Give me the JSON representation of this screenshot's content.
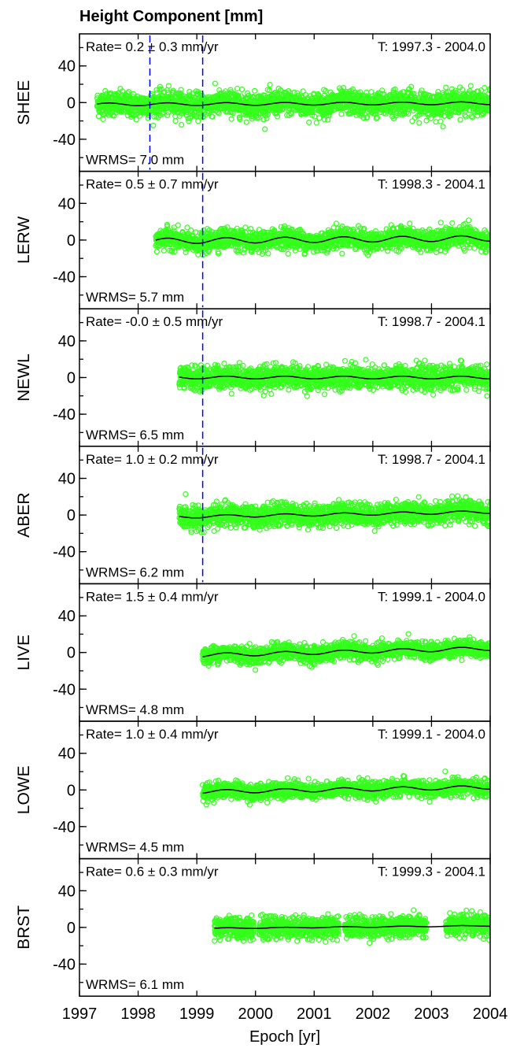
{
  "chart_data": {
    "type": "scatter",
    "title": "Height Component [mm]",
    "xlabel": "Epoch [yr]",
    "xlim": [
      1997,
      2004
    ],
    "ylim": [
      -75,
      75
    ],
    "x_ticks": [
      "1997",
      "1998",
      "1999",
      "2000",
      "2001",
      "2002",
      "2003",
      "2004"
    ],
    "y_ticks": [
      "40",
      "0",
      "-40"
    ],
    "colors": {
      "points": "#33ff1a",
      "model": "#000000",
      "breaks": "#0000ff"
    },
    "panels": [
      {
        "station": "SHEE",
        "rate_label": "Rate=  0.2 ±  0.3 mm/yr",
        "rate": 0.2,
        "rate_sigma": 0.3,
        "span_label": "T: 1997.3 - 2004.0",
        "t_start": 1997.3,
        "t_end": 2004.0,
        "wrms_label": "WRMS=  7.0 mm",
        "wrms": 7.0,
        "breaks": [
          1998.2,
          1999.1
        ],
        "seasonal_amp": 1.5,
        "offset": -2,
        "gaps": []
      },
      {
        "station": "LERW",
        "rate_label": "Rate=  0.5 ±  0.7 mm/yr",
        "rate": 0.5,
        "rate_sigma": 0.7,
        "span_label": "T: 1998.3 - 2004.1",
        "t_start": 1998.3,
        "t_end": 2004.1,
        "wrms_label": "WRMS=  5.7 mm",
        "wrms": 5.7,
        "breaks": [
          1999.1
        ],
        "seasonal_amp": 3.0,
        "offset": -1,
        "gaps": []
      },
      {
        "station": "NEWL",
        "rate_label": "Rate= -0.0 ±  0.5 mm/yr",
        "rate": 0.0,
        "rate_sigma": 0.5,
        "span_label": "T: 1998.7 - 2004.1",
        "t_start": 1998.7,
        "t_end": 2004.1,
        "wrms_label": "WRMS=  6.5 mm",
        "wrms": 6.5,
        "breaks": [
          1999.1
        ],
        "seasonal_amp": 1.5,
        "offset": 0,
        "gaps": []
      },
      {
        "station": "ABER",
        "rate_label": "Rate=  1.0 ±  0.2 mm/yr",
        "rate": 1.0,
        "rate_sigma": 0.2,
        "span_label": "T: 1998.7 - 2004.1",
        "t_start": 1998.7,
        "t_end": 2004.1,
        "wrms_label": "WRMS=  6.2 mm",
        "wrms": 6.2,
        "breaks": [
          1999.1
        ],
        "seasonal_amp": 1.5,
        "offset": -2,
        "gaps": []
      },
      {
        "station": "LIVE",
        "rate_label": "Rate=  1.5 ±  0.4 mm/yr",
        "rate": 1.5,
        "rate_sigma": 0.4,
        "span_label": "T: 1999.1 - 2004.0",
        "t_start": 1999.1,
        "t_end": 2004.0,
        "wrms_label": "WRMS=  4.8 mm",
        "wrms": 4.8,
        "breaks": [],
        "seasonal_amp": 2.0,
        "offset": -3,
        "gaps": []
      },
      {
        "station": "LOWE",
        "rate_label": "Rate=  1.0 ±  0.4 mm/yr",
        "rate": 1.0,
        "rate_sigma": 0.4,
        "span_label": "T: 1999.1 - 2004.0",
        "t_start": 1999.1,
        "t_end": 2004.0,
        "wrms_label": "WRMS=  4.5 mm",
        "wrms": 4.5,
        "breaks": [],
        "seasonal_amp": 2.0,
        "offset": -2,
        "gaps": []
      },
      {
        "station": "BRST",
        "rate_label": "Rate=  0.6 ±  0.3 mm/yr",
        "rate": 0.6,
        "rate_sigma": 0.3,
        "span_label": "T: 1999.3 - 2004.1",
        "t_start": 1999.3,
        "t_end": 2004.1,
        "wrms_label": "WRMS=  6.1 mm",
        "wrms": 6.1,
        "breaks": [],
        "seasonal_amp": 0.5,
        "offset": -1,
        "gaps": [
          [
            1999.97,
            2000.06
          ],
          [
            2001.42,
            2001.52
          ],
          [
            2002.91,
            2003.24
          ]
        ]
      }
    ]
  }
}
